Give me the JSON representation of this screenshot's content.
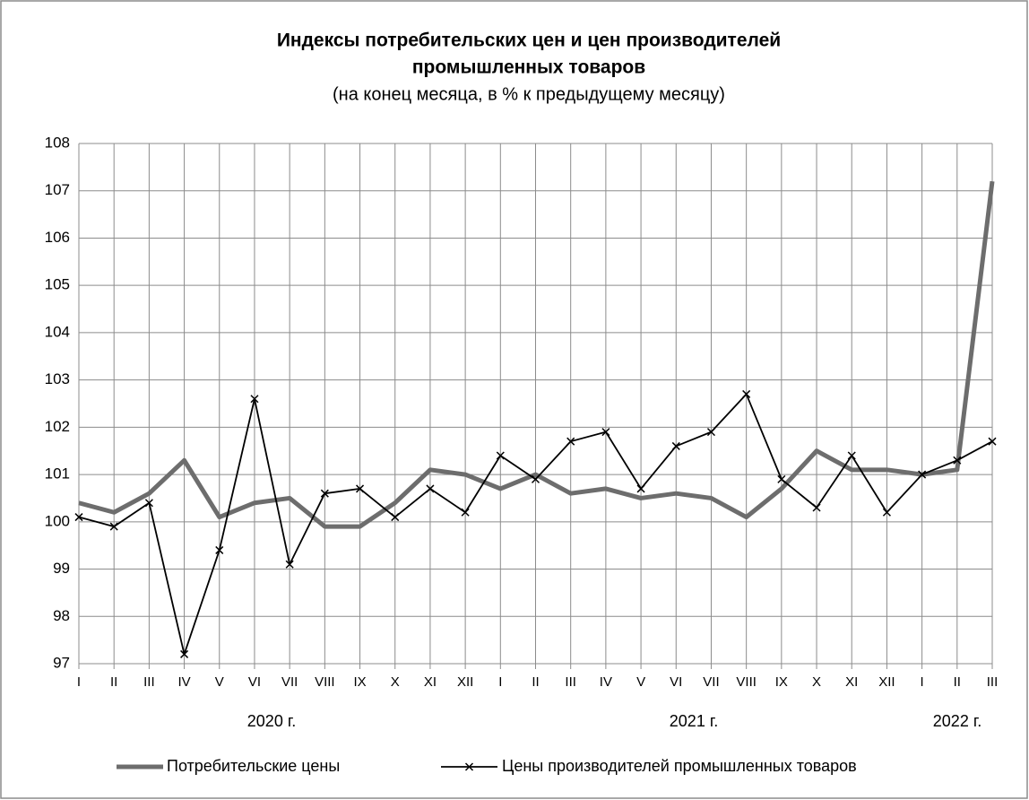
{
  "chart_data": {
    "type": "line",
    "title": [
      "Индексы потребительских цен и цен производителей",
      "промышленных товаров"
    ],
    "subtitle": "(на конец месяца, в % к предыдущему месяцу)",
    "categories": [
      "I",
      "II",
      "III",
      "IV",
      "V",
      "VI",
      "VII",
      "VIII",
      "IX",
      "X",
      "XI",
      "XII",
      "I",
      "II",
      "III",
      "IV",
      "V",
      "VI",
      "VII",
      "VIII",
      "IX",
      "X",
      "XI",
      "XII",
      "I",
      "II",
      "III"
    ],
    "year_labels": [
      "2020 г.",
      "2021 г.",
      "2022 г."
    ],
    "series": [
      {
        "name": "Потребительские цены",
        "color": "#6d6d6d",
        "values": [
          100.4,
          100.2,
          100.6,
          101.3,
          100.1,
          100.4,
          100.5,
          99.9,
          99.9,
          100.4,
          101.1,
          101.0,
          100.7,
          101.0,
          100.6,
          100.7,
          100.5,
          100.6,
          100.5,
          100.1,
          100.7,
          101.5,
          101.1,
          101.1,
          101.0,
          101.1,
          107.2
        ]
      },
      {
        "name": "Цены производителей промышленных товаров",
        "color": "#000000",
        "values": [
          100.1,
          99.9,
          100.4,
          97.2,
          99.4,
          102.6,
          99.1,
          100.6,
          100.7,
          100.1,
          100.7,
          100.2,
          101.4,
          100.9,
          101.7,
          101.9,
          100.7,
          101.6,
          101.9,
          102.7,
          100.9,
          100.3,
          101.4,
          100.2,
          101.0,
          101.3,
          101.7
        ]
      }
    ],
    "ylim": [
      97,
      108
    ],
    "yticks": [
      97,
      98,
      99,
      100,
      101,
      102,
      103,
      104,
      105,
      106,
      107,
      108
    ],
    "grid": true,
    "legend": "bottom"
  }
}
